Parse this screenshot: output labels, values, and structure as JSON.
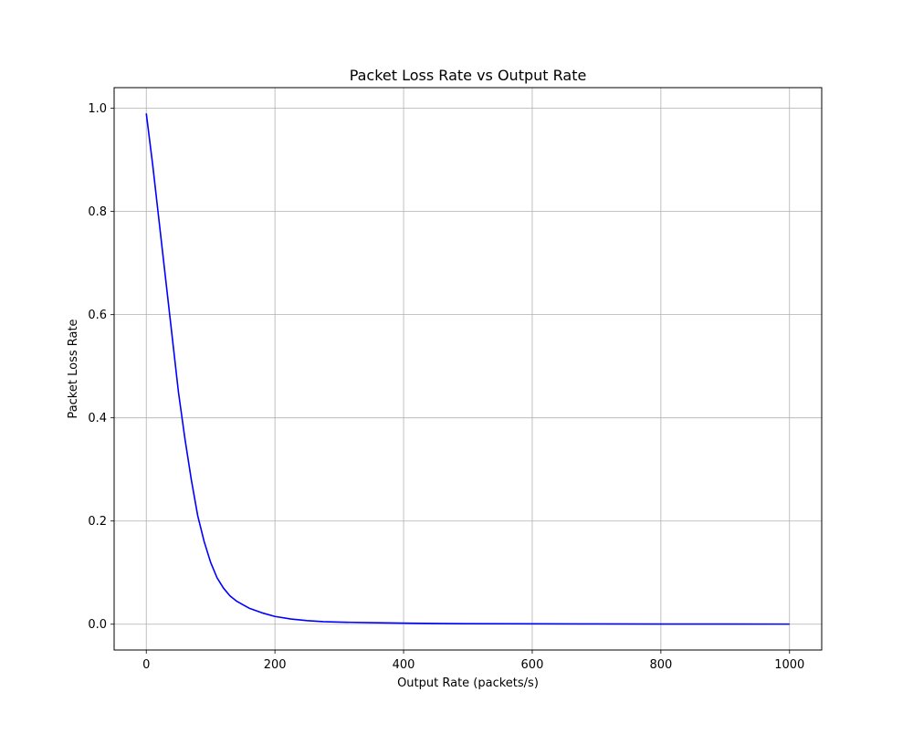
{
  "chart_data": {
    "type": "line",
    "title": "Packet Loss Rate vs Output Rate",
    "xlabel": "Output Rate (packets/s)",
    "ylabel": "Packet Loss Rate",
    "xlim": [
      -50,
      1050
    ],
    "ylim": [
      -0.05,
      1.04
    ],
    "xticks": [
      0,
      200,
      400,
      600,
      800,
      1000
    ],
    "yticks": [
      0.0,
      0.2,
      0.4,
      0.6,
      0.8,
      1.0
    ],
    "xtick_labels": [
      "0",
      "200",
      "400",
      "600",
      "800",
      "1000"
    ],
    "ytick_labels": [
      "0.0",
      "0.2",
      "0.4",
      "0.6",
      "0.8",
      "1.0"
    ],
    "grid": true,
    "series": [
      {
        "color": "#0000ff",
        "x": [
          0,
          10,
          20,
          30,
          40,
          50,
          60,
          70,
          80,
          90,
          100,
          110,
          120,
          130,
          140,
          150,
          160,
          180,
          200,
          225,
          250,
          275,
          300,
          350,
          400,
          450,
          500,
          600,
          700,
          800,
          900,
          1000
        ],
        "y": [
          0.99,
          0.89,
          0.78,
          0.67,
          0.56,
          0.45,
          0.36,
          0.28,
          0.21,
          0.16,
          0.12,
          0.09,
          0.07,
          0.055,
          0.045,
          0.038,
          0.031,
          0.022,
          0.015,
          0.01,
          0.007,
          0.005,
          0.004,
          0.003,
          0.002,
          0.0015,
          0.001,
          0.0007,
          0.0005,
          0.0004,
          0.0003,
          0.0002
        ]
      }
    ]
  }
}
